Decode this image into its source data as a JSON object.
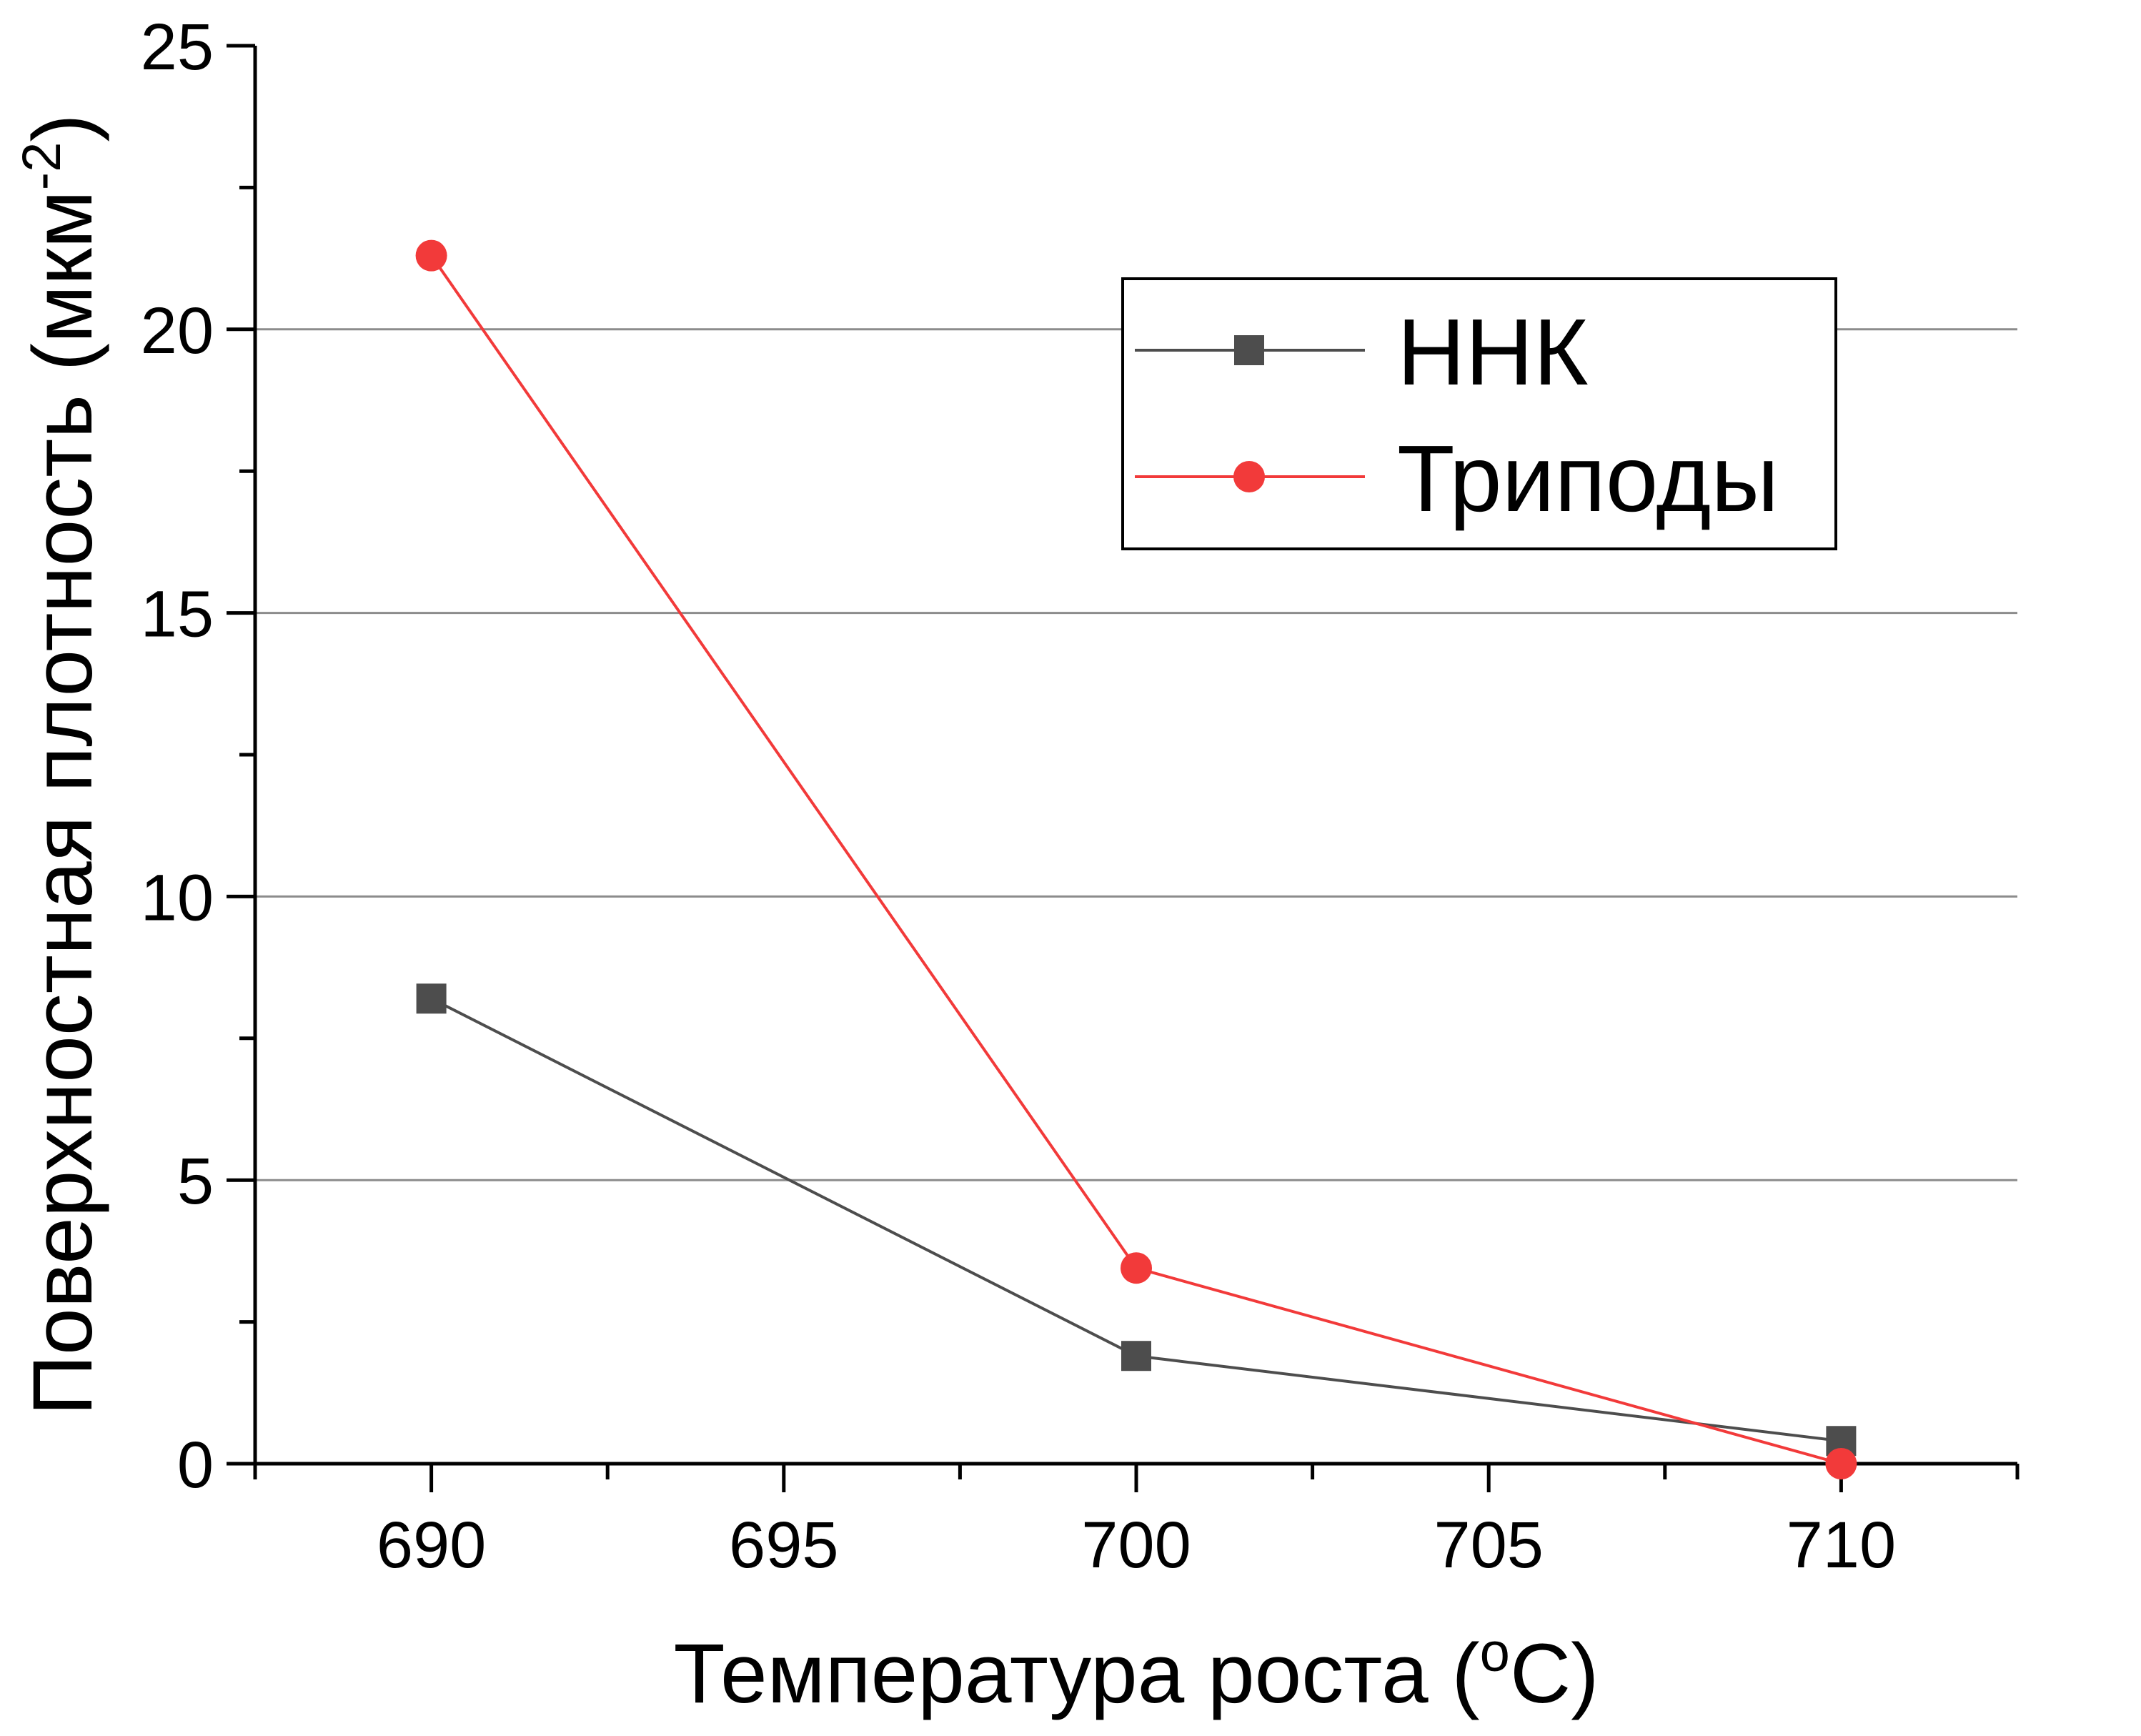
{
  "chart_data": {
    "type": "line",
    "xlabel": {
      "prefix": "Температура роста (",
      "sup": "o",
      "suffix": "C)"
    },
    "ylabel": {
      "prefix": "Поверхностная плотность (мкм",
      "sup": "-2",
      "suffix": ")"
    },
    "xlim": [
      687.5,
      712.5
    ],
    "ylim": [
      0,
      25
    ],
    "xticks": [
      690,
      695,
      700,
      705,
      710
    ],
    "yticks": [
      0,
      5,
      10,
      15,
      20,
      25
    ],
    "grid": {
      "horizontal": true,
      "vertical": false,
      "values": [
        5,
        10,
        15,
        20
      ]
    },
    "legend_position": "top-right",
    "series": [
      {
        "name": "ННК",
        "marker": "square",
        "color": "#4d4d4d",
        "x": [
          690,
          700,
          710
        ],
        "y": [
          8.2,
          1.9,
          0.4
        ]
      },
      {
        "name": "Триподы",
        "marker": "circle",
        "color": "#f23a3a",
        "x": [
          690,
          700,
          710
        ],
        "y": [
          21.3,
          3.45,
          0.0
        ]
      }
    ]
  }
}
